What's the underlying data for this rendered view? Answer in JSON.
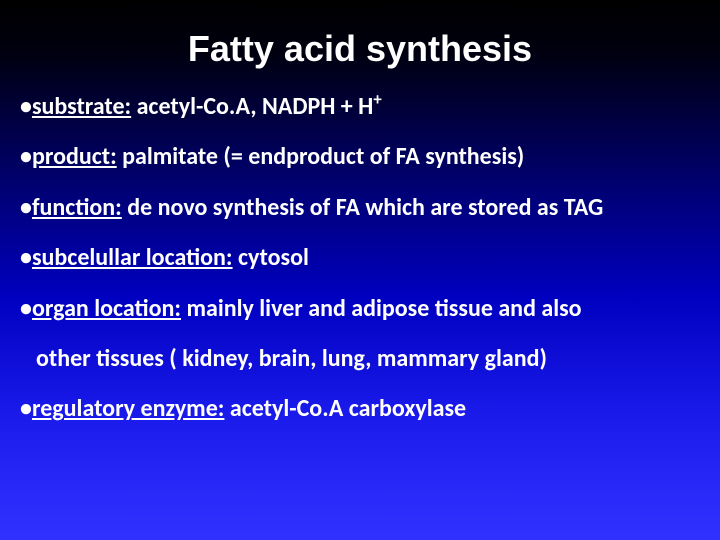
{
  "slide": {
    "title": "Fatty acid synthesis",
    "title_fontsize": 36,
    "title_color": "#ffffff",
    "body_fontsize": 24,
    "body_color": "#ffffff",
    "background_gradient": [
      "#000000",
      "#000060",
      "#1818e8",
      "#3030ff"
    ],
    "bullets": [
      {
        "label": "substrate:",
        "text_pre": " acetyl-Co.A, NADPH + H",
        "sup": "+"
      },
      {
        "label": "product:",
        "text_pre": " palmitate (= endproduct of FA synthesis)"
      },
      {
        "label": "function:",
        "text_pre": " de novo synthesis of FA which are stored as TAG"
      },
      {
        "label": "subcelullar location:",
        "text_pre": " cytosol"
      },
      {
        "label": "organ location:",
        "text_pre": " mainly liver and adipose tissue and also",
        "continuation": "other tissues ( kidney, brain, lung, mammary gland)"
      },
      {
        "label": "regulatory enzyme:",
        "text_pre": " acetyl-Co.A carboxylase"
      }
    ],
    "bullet_char": "•",
    "underline_labels": true
  }
}
